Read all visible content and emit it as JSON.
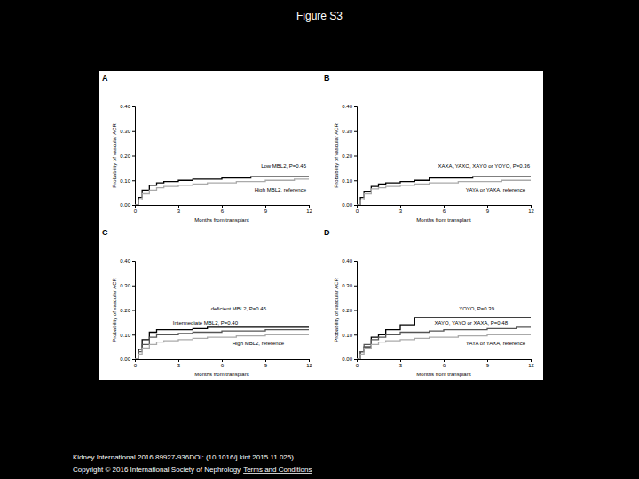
{
  "page": {
    "title": "Figure S3",
    "citation": "Kidney International 2016 89927-936DOI: (10.1016/j.kint.2015.11.025)",
    "copyright": "Copyright © 2016 International Society of Nephrology",
    "link": "Terms and Conditions"
  },
  "chart_data": [
    {
      "type": "step",
      "title": "A",
      "x_label": "Months from transplant",
      "y_label": "Probability of vascular ACR",
      "xlim": [
        0,
        12
      ],
      "ylim": [
        0,
        0.4
      ],
      "xticks": [
        0,
        3,
        6,
        9,
        12
      ],
      "yticks": [
        {
          "value": 0,
          "label": "0.00"
        },
        {
          "value": 0.1,
          "label": "0.10"
        },
        {
          "value": 0.2,
          "label": "0.20"
        },
        {
          "value": 0.3,
          "label": "0.30"
        },
        {
          "value": 0.4,
          "label": "0.40"
        }
      ],
      "x": [
        0,
        0.25,
        0.5,
        1,
        1.5,
        2,
        3,
        4,
        5,
        6,
        7,
        8,
        9,
        10,
        11,
        12
      ],
      "series": [
        {
          "name": "Low MBL2, P=0.45",
          "color": "#000000",
          "values": [
            0,
            0.03,
            0.06,
            0.08,
            0.09,
            0.095,
            0.1,
            0.105,
            0.105,
            0.11,
            0.11,
            0.115,
            0.115,
            0.115,
            0.115,
            0.115
          ]
        },
        {
          "name": "High MBL2, reference",
          "color": "#aaaaaa",
          "values": [
            0,
            0.02,
            0.045,
            0.06,
            0.07,
            0.075,
            0.08,
            0.085,
            0.09,
            0.09,
            0.095,
            0.095,
            0.1,
            0.1,
            0.105,
            0.105
          ]
        }
      ]
    },
    {
      "type": "step",
      "title": "B",
      "x_label": "Months from transplant",
      "y_label": "Probability of vascular ACR",
      "xlim": [
        0,
        12
      ],
      "ylim": [
        0,
        0.4
      ],
      "xticks": [
        0,
        3,
        6,
        9,
        12
      ],
      "yticks": [
        {
          "value": 0,
          "label": "0.00"
        },
        {
          "value": 0.1,
          "label": "0.10"
        },
        {
          "value": 0.2,
          "label": "0.20"
        },
        {
          "value": 0.3,
          "label": "0.30"
        },
        {
          "value": 0.4,
          "label": "0.40"
        }
      ],
      "x": [
        0,
        0.25,
        0.5,
        1,
        1.5,
        2,
        3,
        4,
        5,
        6,
        7,
        8,
        9,
        10,
        11,
        12
      ],
      "series": [
        {
          "name": "XAXA, YAXO, XAYO or YOYO, P=0.36",
          "color": "#000000",
          "values": [
            0,
            0.03,
            0.055,
            0.075,
            0.085,
            0.09,
            0.095,
            0.1,
            0.11,
            0.11,
            0.11,
            0.115,
            0.115,
            0.115,
            0.115,
            0.115
          ]
        },
        {
          "name": "YAYA or YAXA, reference",
          "color": "#aaaaaa",
          "values": [
            0,
            0.02,
            0.045,
            0.065,
            0.07,
            0.075,
            0.08,
            0.085,
            0.09,
            0.09,
            0.095,
            0.095,
            0.095,
            0.1,
            0.1,
            0.1
          ]
        }
      ]
    },
    {
      "type": "step",
      "title": "C",
      "x_label": "Months from transplant",
      "y_label": "Probability of vascular ACR",
      "xlim": [
        0,
        12
      ],
      "ylim": [
        0,
        0.4
      ],
      "xticks": [
        0,
        3,
        6,
        9,
        12
      ],
      "yticks": [
        {
          "value": 0,
          "label": "0.00"
        },
        {
          "value": 0.1,
          "label": "0.10"
        },
        {
          "value": 0.2,
          "label": "0.20"
        },
        {
          "value": 0.3,
          "label": "0.30"
        },
        {
          "value": 0.4,
          "label": "0.40"
        }
      ],
      "x": [
        0,
        0.25,
        0.5,
        1,
        1.5,
        2,
        3,
        4,
        5,
        6,
        7,
        8,
        9,
        10,
        11,
        12
      ],
      "series": [
        {
          "name": "deficient MBL2, P=0.45",
          "color": "#000000",
          "values": [
            0,
            0.04,
            0.08,
            0.11,
            0.12,
            0.12,
            0.12,
            0.125,
            0.13,
            0.13,
            0.13,
            0.13,
            0.13,
            0.13,
            0.13,
            0.13
          ]
        },
        {
          "name": "Intermediate MBL2, P=0.40",
          "color": "#555555",
          "values": [
            0,
            0.03,
            0.06,
            0.09,
            0.1,
            0.1,
            0.105,
            0.11,
            0.11,
            0.115,
            0.115,
            0.115,
            0.12,
            0.12,
            0.12,
            0.12
          ]
        },
        {
          "name": "High MBL2, reference",
          "color": "#aaaaaa",
          "values": [
            0,
            0.02,
            0.045,
            0.06,
            0.07,
            0.075,
            0.08,
            0.085,
            0.09,
            0.09,
            0.095,
            0.095,
            0.1,
            0.1,
            0.1,
            0.1
          ]
        }
      ]
    },
    {
      "type": "step",
      "title": "D",
      "x_label": "Months from transplant",
      "y_label": "Probability of vascular ACR",
      "xlim": [
        0,
        12
      ],
      "ylim": [
        0,
        0.4
      ],
      "xticks": [
        0,
        3,
        6,
        9,
        12
      ],
      "yticks": [
        {
          "value": 0,
          "label": "0.00"
        },
        {
          "value": 0.1,
          "label": "0.10"
        },
        {
          "value": 0.2,
          "label": "0.20"
        },
        {
          "value": 0.3,
          "label": "0.30"
        },
        {
          "value": 0.4,
          "label": "0.40"
        }
      ],
      "x": [
        0,
        0.25,
        0.5,
        1,
        1.5,
        2,
        3,
        4,
        5,
        6,
        7,
        8,
        9,
        10,
        11,
        12
      ],
      "series": [
        {
          "name": "YOYO, P=0.39",
          "color": "#000000",
          "values": [
            0,
            0.03,
            0.05,
            0.09,
            0.1,
            0.12,
            0.14,
            0.17,
            0.17,
            0.17,
            0.17,
            0.17,
            0.17,
            0.17,
            0.17,
            0.17
          ]
        },
        {
          "name": "XAYO, YAYO or XAXA, P=0.48",
          "color": "#555555",
          "values": [
            0,
            0.03,
            0.06,
            0.08,
            0.09,
            0.1,
            0.11,
            0.11,
            0.115,
            0.12,
            0.12,
            0.12,
            0.125,
            0.125,
            0.13,
            0.13
          ]
        },
        {
          "name": "YAYA or YAXA, reference",
          "color": "#aaaaaa",
          "values": [
            0,
            0.02,
            0.045,
            0.06,
            0.07,
            0.075,
            0.08,
            0.085,
            0.09,
            0.09,
            0.095,
            0.095,
            0.1,
            0.1,
            0.1,
            0.1
          ]
        }
      ]
    }
  ]
}
